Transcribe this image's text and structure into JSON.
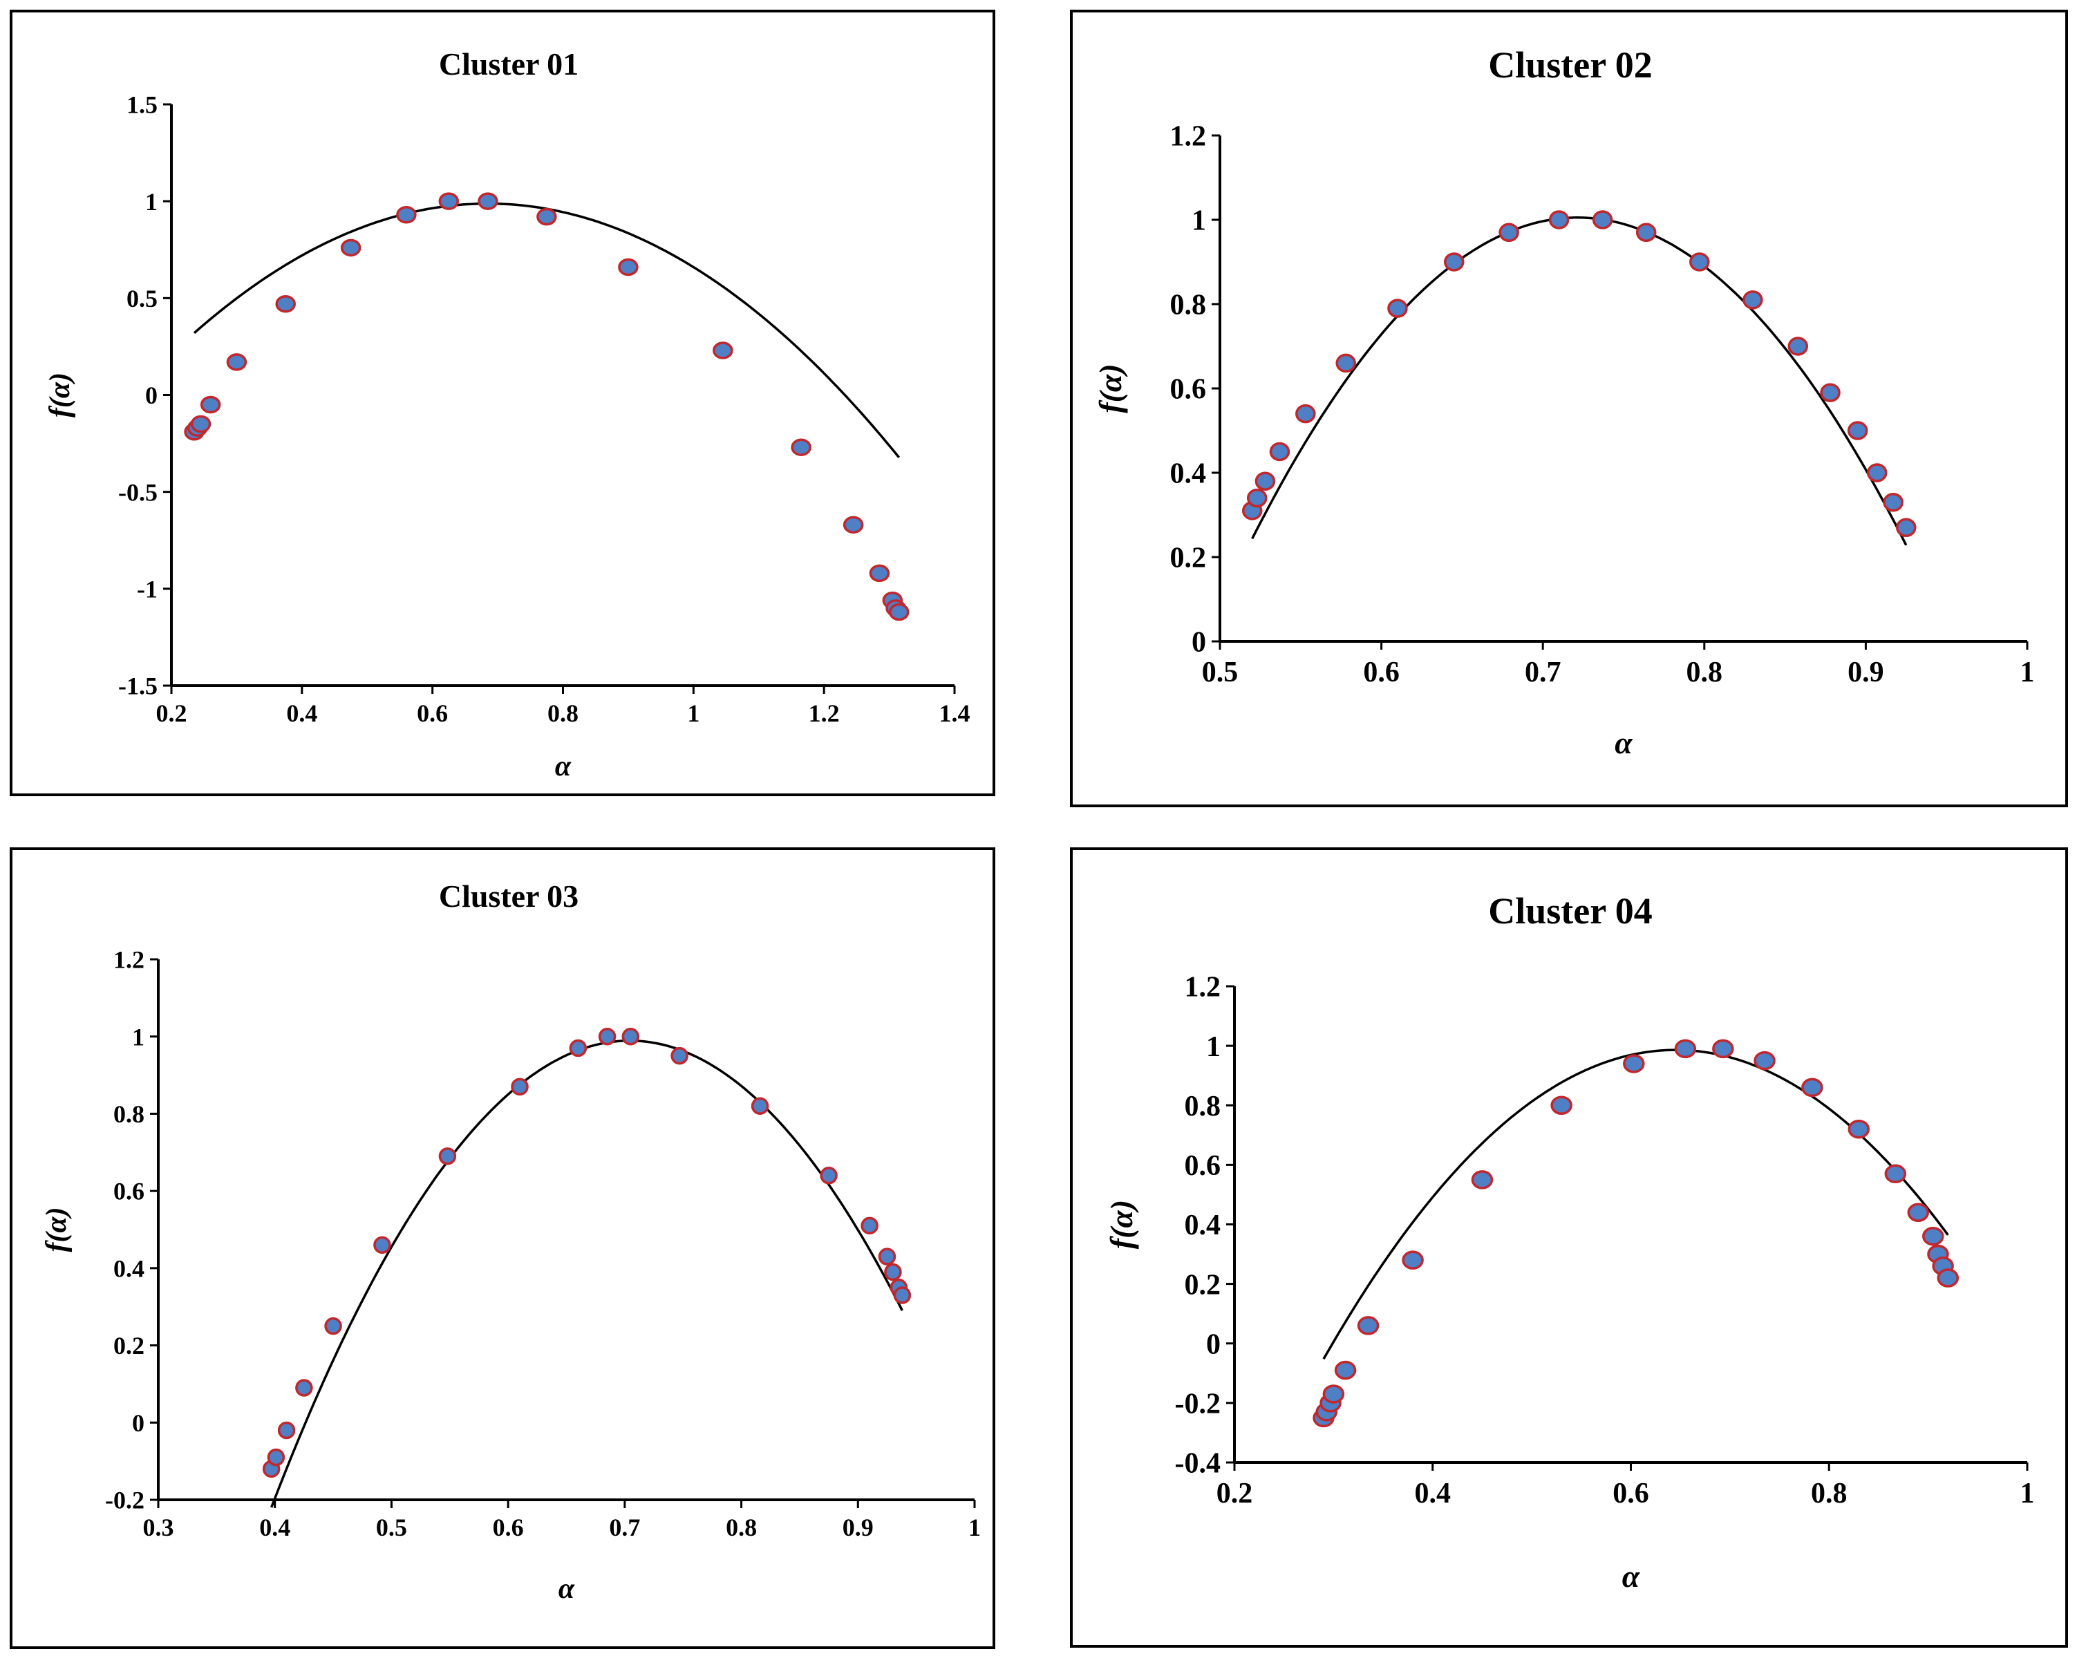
{
  "chart_data": [
    {
      "type": "scatter",
      "title": "Cluster 01",
      "xlabel": "α",
      "ylabel": "f(α)",
      "xlim": [
        0.2,
        1.4
      ],
      "ylim": [
        -1.5,
        1.5
      ],
      "xticks": [
        0.2,
        0.4,
        0.6,
        0.8,
        1,
        1.2,
        1.4
      ],
      "yticks": [
        -1.5,
        -1,
        -0.5,
        0,
        0.5,
        1,
        1.5
      ],
      "xtick_labels": [
        "0.2",
        "0.4",
        "0.6",
        "0.8",
        "1",
        "1.2",
        "1.4"
      ],
      "ytick_labels": [
        "-1.5",
        "-1",
        "-0.5",
        "0",
        "0.5",
        "1",
        "1.5"
      ],
      "grid": false,
      "legend": "none",
      "points": [
        {
          "x": 0.235,
          "y": -0.19
        },
        {
          "x": 0.24,
          "y": -0.17
        },
        {
          "x": 0.245,
          "y": -0.15
        },
        {
          "x": 0.26,
          "y": -0.05
        },
        {
          "x": 0.3,
          "y": 0.17
        },
        {
          "x": 0.375,
          "y": 0.47
        },
        {
          "x": 0.475,
          "y": 0.76
        },
        {
          "x": 0.56,
          "y": 0.93
        },
        {
          "x": 0.625,
          "y": 1.0
        },
        {
          "x": 0.685,
          "y": 1.0
        },
        {
          "x": 0.775,
          "y": 0.92
        },
        {
          "x": 0.9,
          "y": 0.66
        },
        {
          "x": 1.045,
          "y": 0.23
        },
        {
          "x": 1.165,
          "y": -0.27
        },
        {
          "x": 1.245,
          "y": -0.67
        },
        {
          "x": 1.285,
          "y": -0.92
        },
        {
          "x": 1.305,
          "y": -1.06
        },
        {
          "x": 1.31,
          "y": -1.1
        },
        {
          "x": 1.315,
          "y": -1.12
        }
      ],
      "fit_curve": {
        "x_range": [
          0.235,
          1.315
        ],
        "coefficients": [
          -3.3,
          4.52,
          -0.56
        ]
      },
      "marker_fill": "#4f7fc4",
      "marker_edge": "#c2272d"
    },
    {
      "type": "scatter",
      "title": "Cluster 02",
      "xlabel": "α",
      "ylabel": "f(α)",
      "xlim": [
        0.5,
        1
      ],
      "ylim": [
        0,
        1.2
      ],
      "xticks": [
        0.5,
        0.6,
        0.7,
        0.8,
        0.9,
        1
      ],
      "yticks": [
        0,
        0.2,
        0.4,
        0.6,
        0.8,
        1,
        1.2
      ],
      "xtick_labels": [
        "0.5",
        "0.6",
        "0.7",
        "0.8",
        "0.9",
        "1"
      ],
      "ytick_labels": [
        "0",
        "0.2",
        "0.4",
        "0.6",
        "0.8",
        "1",
        "1.2"
      ],
      "grid": false,
      "legend": "none",
      "points": [
        {
          "x": 0.52,
          "y": 0.31
        },
        {
          "x": 0.523,
          "y": 0.34
        },
        {
          "x": 0.528,
          "y": 0.38
        },
        {
          "x": 0.537,
          "y": 0.45
        },
        {
          "x": 0.553,
          "y": 0.54
        },
        {
          "x": 0.578,
          "y": 0.66
        },
        {
          "x": 0.61,
          "y": 0.79
        },
        {
          "x": 0.645,
          "y": 0.9
        },
        {
          "x": 0.679,
          "y": 0.97
        },
        {
          "x": 0.71,
          "y": 1.0
        },
        {
          "x": 0.737,
          "y": 1.0
        },
        {
          "x": 0.764,
          "y": 0.97
        },
        {
          "x": 0.797,
          "y": 0.9
        },
        {
          "x": 0.83,
          "y": 0.81
        },
        {
          "x": 0.858,
          "y": 0.7
        },
        {
          "x": 0.878,
          "y": 0.59
        },
        {
          "x": 0.895,
          "y": 0.5
        },
        {
          "x": 0.907,
          "y": 0.4
        },
        {
          "x": 0.917,
          "y": 0.33
        },
        {
          "x": 0.925,
          "y": 0.27
        }
      ],
      "fit_curve": {
        "x_range": [
          0.52,
          0.925
        ],
        "coefficients": [
          -18.76,
          27.07,
          -8.76
        ]
      },
      "marker_fill": "#4f7fc4",
      "marker_edge": "#c2272d"
    },
    {
      "type": "scatter",
      "title": "Cluster 03",
      "xlabel": "α",
      "ylabel": "f(α)",
      "xlim": [
        0.3,
        1
      ],
      "ylim": [
        -0.2,
        1.2
      ],
      "xticks": [
        0.3,
        0.4,
        0.5,
        0.6,
        0.7,
        0.8,
        0.9,
        1
      ],
      "yticks": [
        -0.2,
        0,
        0.2,
        0.4,
        0.6,
        0.8,
        1,
        1.2
      ],
      "xtick_labels": [
        "0.3",
        "0.4",
        "0.5",
        "0.6",
        "0.7",
        "0.8",
        "0.9",
        "1"
      ],
      "ytick_labels": [
        "-0.2",
        "0",
        "0.2",
        "0.4",
        "0.6",
        "0.8",
        "1",
        "1.2"
      ],
      "grid": false,
      "legend": "none",
      "points": [
        {
          "x": 0.397,
          "y": -0.12
        },
        {
          "x": 0.401,
          "y": -0.09
        },
        {
          "x": 0.41,
          "y": -0.02
        },
        {
          "x": 0.425,
          "y": 0.09
        },
        {
          "x": 0.45,
          "y": 0.25
        },
        {
          "x": 0.492,
          "y": 0.46
        },
        {
          "x": 0.548,
          "y": 0.69
        },
        {
          "x": 0.61,
          "y": 0.87
        },
        {
          "x": 0.66,
          "y": 0.97
        },
        {
          "x": 0.685,
          "y": 1.0
        },
        {
          "x": 0.705,
          "y": 1.0
        },
        {
          "x": 0.747,
          "y": 0.95
        },
        {
          "x": 0.816,
          "y": 0.82
        },
        {
          "x": 0.875,
          "y": 0.64
        },
        {
          "x": 0.91,
          "y": 0.51
        },
        {
          "x": 0.925,
          "y": 0.43
        },
        {
          "x": 0.93,
          "y": 0.39
        },
        {
          "x": 0.935,
          "y": 0.35
        },
        {
          "x": 0.938,
          "y": 0.33
        }
      ],
      "fit_curve": {
        "x_range": [
          0.397,
          0.938
        ],
        "coefficients": [
          -12.8,
          18.03,
          -5.36
        ]
      },
      "marker_fill": "#4f7fc4",
      "marker_edge": "#c2272d"
    },
    {
      "type": "scatter",
      "title": "Cluster 04",
      "xlabel": "α",
      "ylabel": "f(α)",
      "xlim": [
        0.2,
        1
      ],
      "ylim": [
        -0.4,
        1.2
      ],
      "xticks": [
        0.2,
        0.4,
        0.6,
        0.8,
        1
      ],
      "yticks": [
        -0.4,
        -0.2,
        0,
        0.2,
        0.4,
        0.6,
        0.8,
        1,
        1.2
      ],
      "xtick_labels": [
        "0.2",
        "0.4",
        "0.6",
        "0.8",
        "1"
      ],
      "ytick_labels": [
        "-0.4",
        "-0.2",
        "0",
        "0.2",
        "0.4",
        "0.6",
        "0.8",
        "1",
        "1.2"
      ],
      "grid": false,
      "legend": "none",
      "points": [
        {
          "x": 0.29,
          "y": -0.25
        },
        {
          "x": 0.293,
          "y": -0.23
        },
        {
          "x": 0.297,
          "y": -0.2
        },
        {
          "x": 0.3,
          "y": -0.17
        },
        {
          "x": 0.312,
          "y": -0.09
        },
        {
          "x": 0.335,
          "y": 0.06
        },
        {
          "x": 0.38,
          "y": 0.28
        },
        {
          "x": 0.45,
          "y": 0.55
        },
        {
          "x": 0.53,
          "y": 0.8
        },
        {
          "x": 0.603,
          "y": 0.94
        },
        {
          "x": 0.655,
          "y": 0.99
        },
        {
          "x": 0.693,
          "y": 0.99
        },
        {
          "x": 0.735,
          "y": 0.95
        },
        {
          "x": 0.783,
          "y": 0.86
        },
        {
          "x": 0.83,
          "y": 0.72
        },
        {
          "x": 0.867,
          "y": 0.57
        },
        {
          "x": 0.89,
          "y": 0.44
        },
        {
          "x": 0.905,
          "y": 0.36
        },
        {
          "x": 0.91,
          "y": 0.3
        },
        {
          "x": 0.915,
          "y": 0.26
        },
        {
          "x": 0.92,
          "y": 0.22
        }
      ],
      "fit_curve": {
        "x_range": [
          0.29,
          0.92
        ],
        "coefficients": [
          -8.23,
          10.62,
          -2.44
        ]
      },
      "marker_fill": "#4f7fc4",
      "marker_edge": "#c2272d"
    }
  ]
}
